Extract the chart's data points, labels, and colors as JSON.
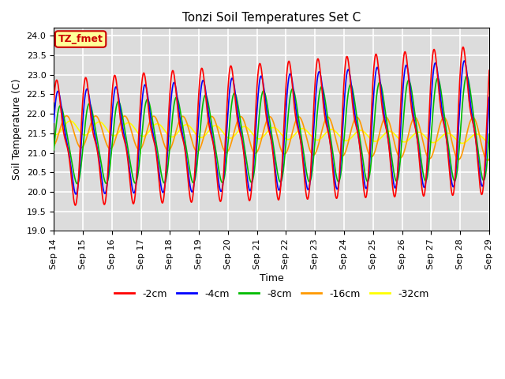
{
  "title": "Tonzi Soil Temperatures Set C",
  "xlabel": "Time",
  "ylabel": "Soil Temperature (C)",
  "ylim": [
    19.0,
    24.2
  ],
  "yticks": [
    19.0,
    19.5,
    20.0,
    20.5,
    21.0,
    21.5,
    22.0,
    22.5,
    23.0,
    23.5,
    24.0
  ],
  "legend_labels": [
    "-2cm",
    "-4cm",
    "-8cm",
    "-16cm",
    "-32cm"
  ],
  "legend_colors": [
    "#ff0000",
    "#0000ff",
    "#00bb00",
    "#ff9900",
    "#ffff00"
  ],
  "annotation_text": "TZ_fmet",
  "annotation_color": "#cc0000",
  "annotation_bg": "#ffff99",
  "background_color": "#dcdcdc",
  "grid_color": "#ffffff",
  "n_days": 15,
  "start_day": 14,
  "points_per_day": 96
}
